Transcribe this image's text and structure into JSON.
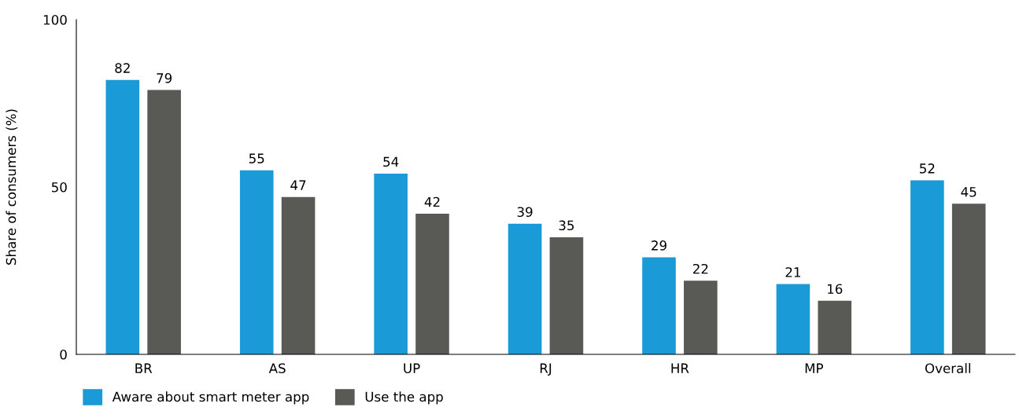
{
  "chart_data": {
    "type": "bar",
    "ylabel": "Share of consumers (%)",
    "categories": [
      "BR",
      "AS",
      "UP",
      "RJ",
      "HR",
      "MP",
      "Overall"
    ],
    "series": [
      {
        "name": "Aware about smart meter app",
        "color": "#1a9ad6",
        "values": [
          82,
          55,
          54,
          39,
          29,
          21,
          52
        ]
      },
      {
        "name": "Use the app",
        "color": "#595a55",
        "values": [
          79,
          47,
          42,
          35,
          22,
          16,
          45
        ]
      }
    ],
    "ylim": [
      0,
      100
    ],
    "yticks": [
      0,
      50,
      100
    ],
    "data_labels": true,
    "grid": false,
    "legend": "bottom left"
  }
}
